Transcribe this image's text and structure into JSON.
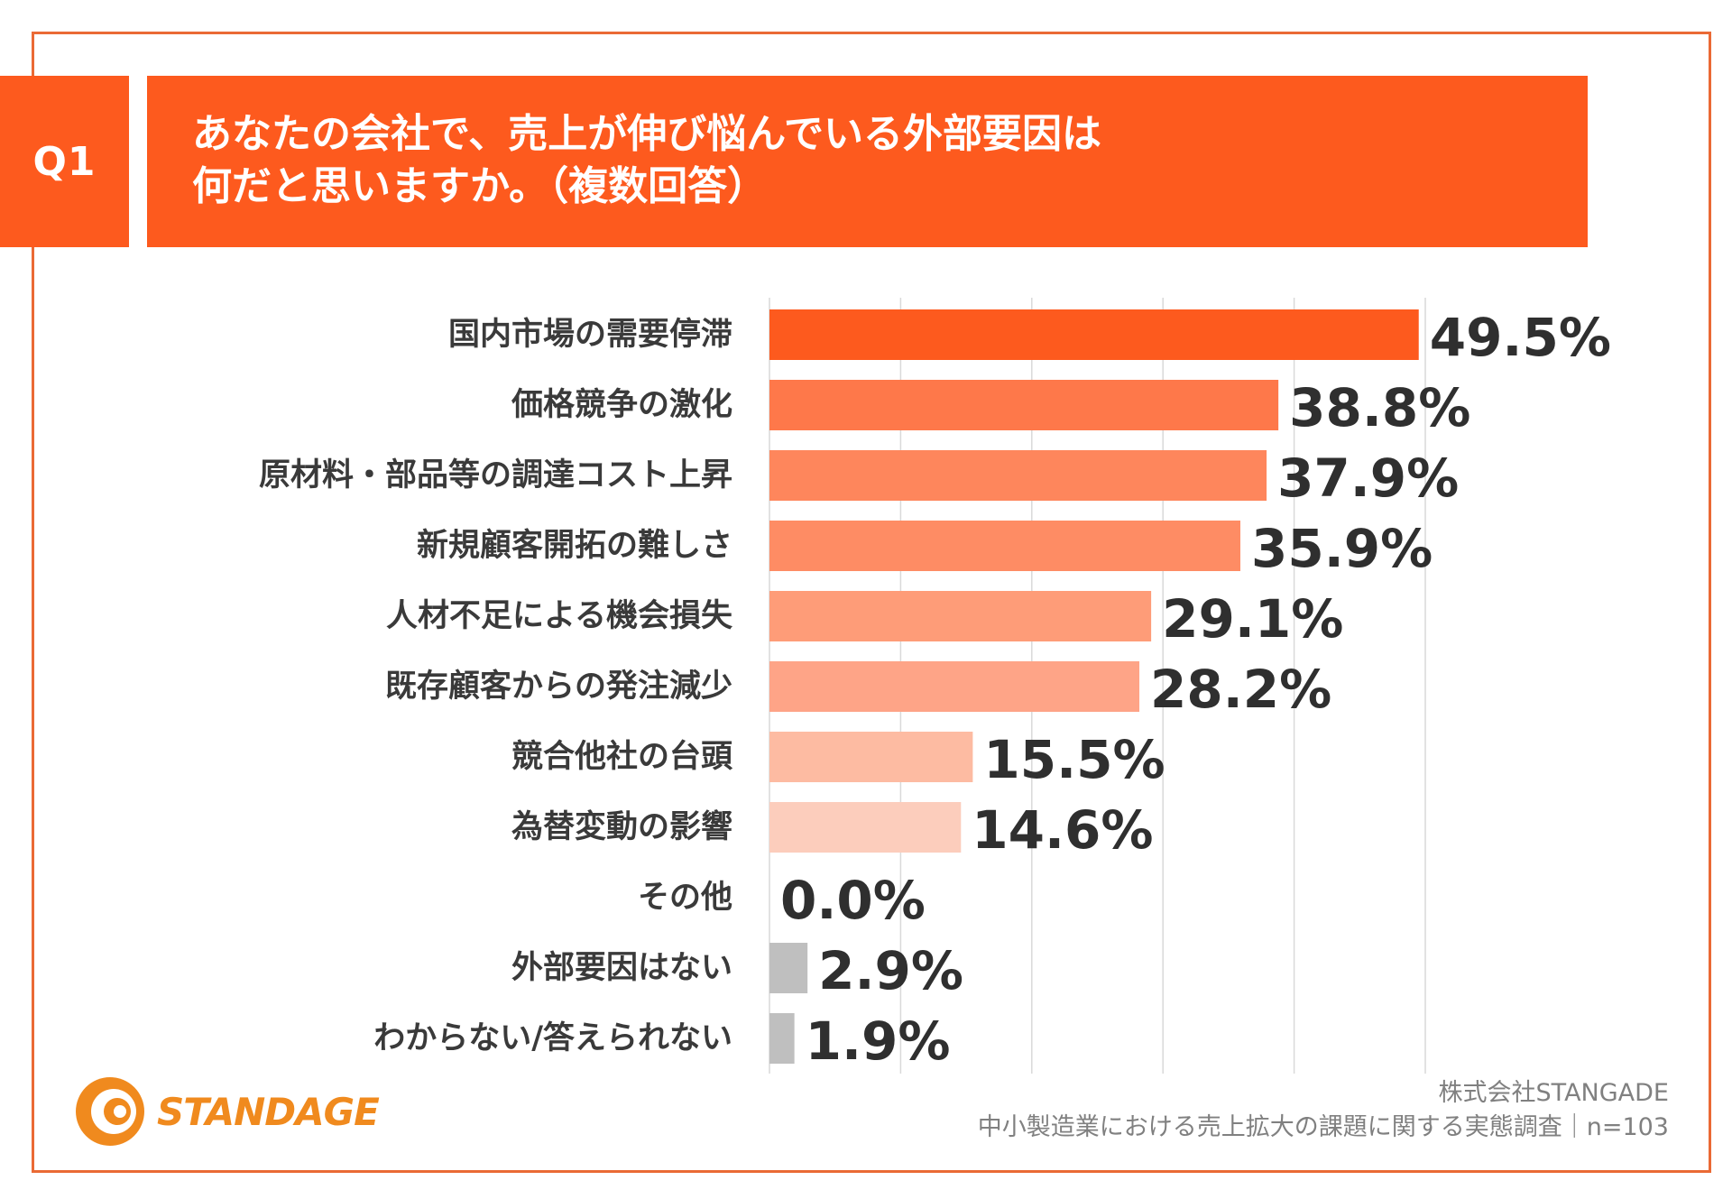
{
  "question": {
    "badge": "Q1",
    "line1": "あなたの会社で、売上が伸び悩んでいる外部要因は",
    "line2": "何だと思いますか。（複数回答）"
  },
  "colors": {
    "accent": "#fd5a1e",
    "frame": "#ea6a35",
    "grid": "#d9d9d9",
    "neutral": "#bfbfbf",
    "logo": "#f08a1e"
  },
  "chart_data": {
    "type": "bar",
    "orientation": "horizontal",
    "title": "あなたの会社で、売上が伸び悩んでいる外部要因は何だと思いますか。（複数回答）",
    "categories": [
      "国内市場の需要停滞",
      "価格競争の激化",
      "原材料・部品等の調達コスト上昇",
      "新規顧客開拓の難しさ",
      "人材不足による機会損失",
      "既存顧客からの発注減少",
      "競合他社の台頭",
      "為替変動の影響",
      "その他",
      "外部要因はない",
      "わからない/答えられない"
    ],
    "values": [
      49.5,
      38.8,
      37.9,
      35.9,
      29.1,
      28.2,
      15.5,
      14.6,
      0.0,
      2.9,
      1.9
    ],
    "value_labels": [
      "49.5%",
      "38.8%",
      "37.9%",
      "35.9%",
      "29.1%",
      "28.2%",
      "15.5%",
      "14.6%",
      "0.0%",
      "2.9%",
      "1.9%"
    ],
    "bar_colors": [
      "#fd5a1e",
      "#fe784a",
      "#fe865c",
      "#fe8c64",
      "#fe9c78",
      "#fea487",
      "#fdbba2",
      "#fccdbc",
      "#fccdbc",
      "#bfbfbf",
      "#bfbfbf"
    ],
    "xlim": [
      0,
      50
    ],
    "gridlines": [
      0,
      10,
      20,
      30,
      40,
      50
    ],
    "grid": true,
    "xlabel": "",
    "ylabel": ""
  },
  "logo": {
    "text": "STANDAGE"
  },
  "source": {
    "company": "株式会社STANGADE",
    "survey": "中小製造業における売上拡大の課題に関する実態調査｜n=103"
  }
}
